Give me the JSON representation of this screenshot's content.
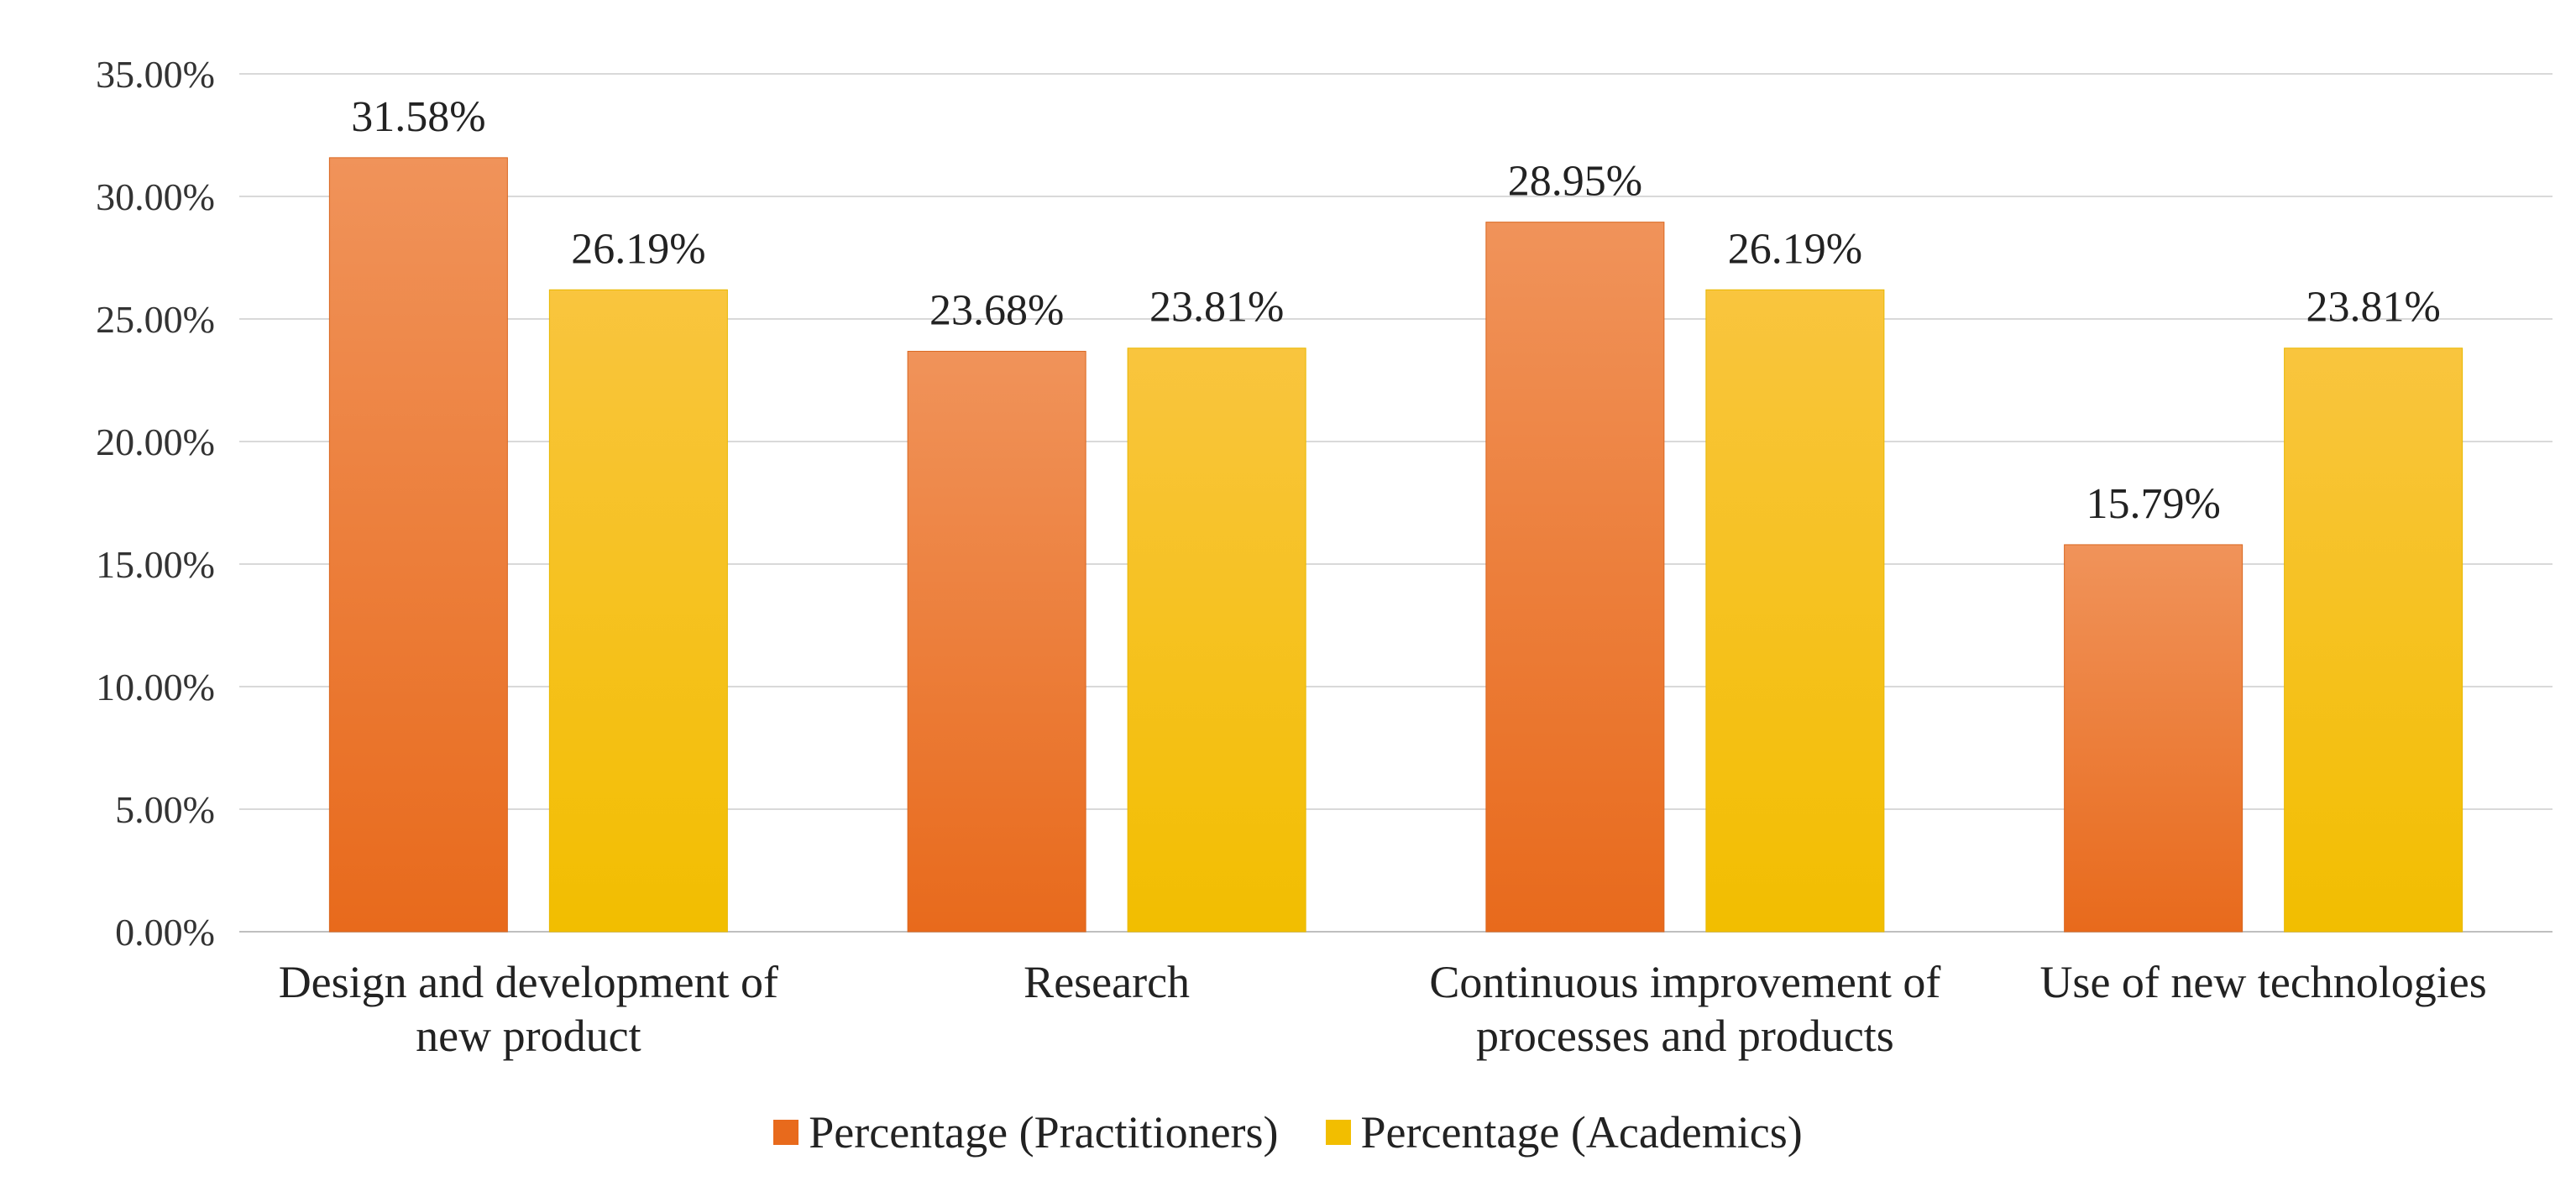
{
  "chart_data": {
    "type": "bar",
    "title": "",
    "xlabel": "",
    "ylabel": "",
    "ylim": [
      0,
      35
    ],
    "yticks": [
      0,
      5,
      10,
      15,
      20,
      25,
      30,
      35
    ],
    "ytick_labels": [
      "0.00%",
      "5.00%",
      "10.00%",
      "15.00%",
      "20.00%",
      "25.00%",
      "30.00%",
      "35.00%"
    ],
    "grid": true,
    "legend_position": "bottom-center",
    "categories": [
      [
        "Design and development of",
        "new product"
      ],
      [
        "Research"
      ],
      [
        "Continuous improvement of",
        "processes and products"
      ],
      [
        "Use of new technologies"
      ]
    ],
    "series": [
      {
        "name": "Percentage (Practitioners)",
        "color": "#E86A1C",
        "color_light": "#F0935A",
        "values": [
          31.58,
          23.68,
          28.95,
          15.79
        ],
        "labels": [
          "31.58%",
          "23.68%",
          "28.95%",
          "15.79%"
        ]
      },
      {
        "name": "Percentage (Academics)",
        "color": "#F2BE00",
        "color_light": "#F9C53E",
        "values": [
          26.19,
          23.81,
          26.19,
          23.81
        ],
        "labels": [
          "26.19%",
          "23.81%",
          "26.19%",
          "23.81%"
        ]
      }
    ]
  }
}
